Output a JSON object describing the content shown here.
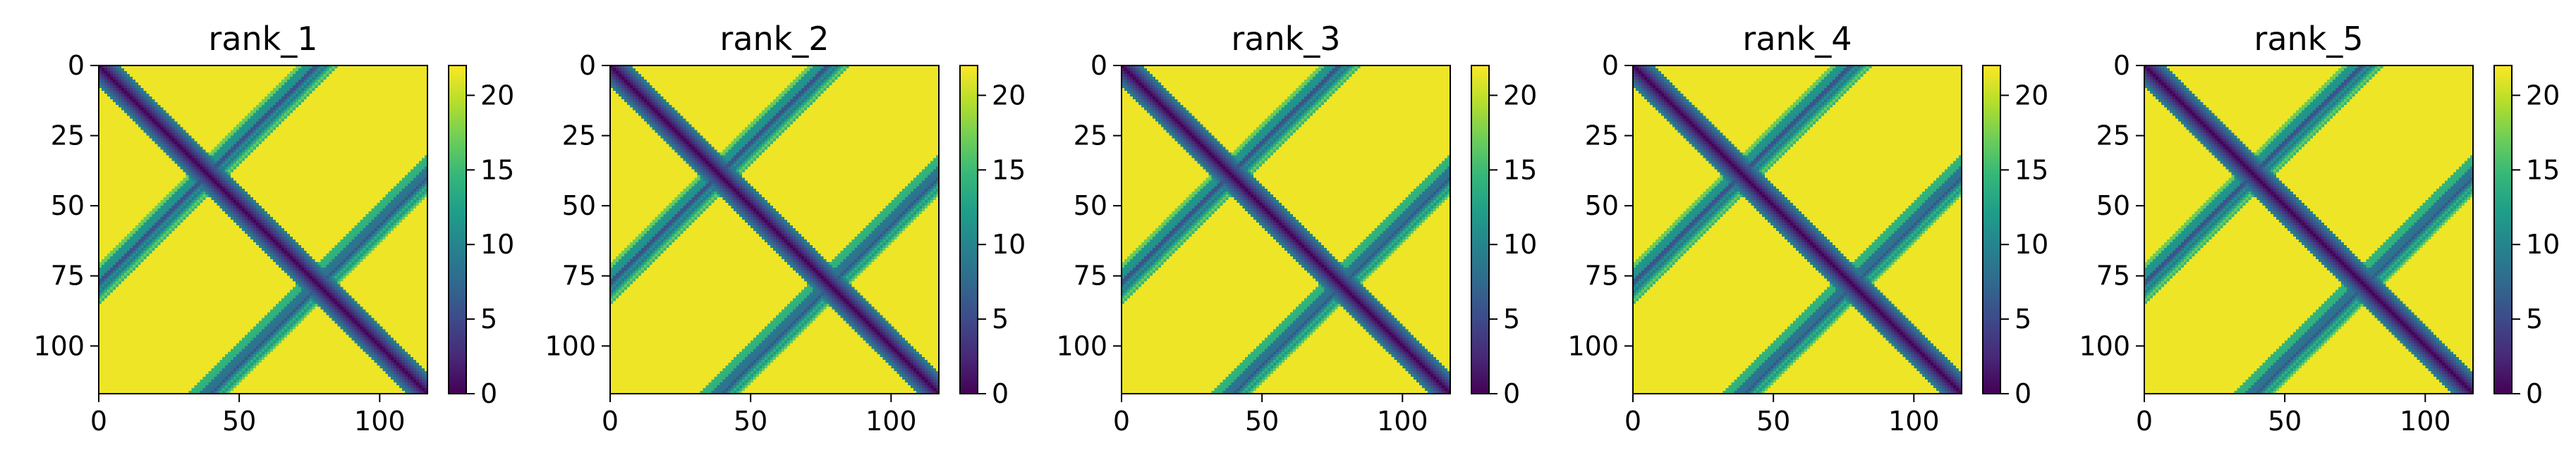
{
  "figure": {
    "background": "#ffffff"
  },
  "colormap": {
    "name": "viridis",
    "stops": [
      "#440154",
      "#482878",
      "#3e4989",
      "#31688e",
      "#26828e",
      "#1f9e89",
      "#35b779",
      "#6ece58",
      "#b5de2b",
      "#fde725"
    ]
  },
  "chart_data": [
    {
      "type": "heatmap",
      "title": "rank_1",
      "matrix_size": 117,
      "x_ticks": [
        "0",
        "50",
        "100"
      ],
      "y_ticks": [
        "0",
        "25",
        "50",
        "75",
        "100"
      ],
      "xlim": [
        0,
        117
      ],
      "ylim": [
        117,
        0
      ],
      "colorbar": {
        "vmin": 0,
        "vmax": 22,
        "ticks": [
          "0",
          "5",
          "10",
          "15",
          "20"
        ]
      },
      "pattern": {
        "main_diagonal_width": 7,
        "anti_bands": [
          {
            "center": 77,
            "half_width": 7
          },
          {
            "center": 155,
            "half_width": 7
          }
        ],
        "saturation": 21.5,
        "saw_period": 4
      }
    },
    {
      "type": "heatmap",
      "title": "rank_2",
      "matrix_size": 117,
      "x_ticks": [
        "0",
        "50",
        "100"
      ],
      "y_ticks": [
        "0",
        "25",
        "50",
        "75",
        "100"
      ],
      "xlim": [
        0,
        117
      ],
      "ylim": [
        117,
        0
      ],
      "colorbar": {
        "vmin": 0,
        "vmax": 22,
        "ticks": [
          "0",
          "5",
          "10",
          "15",
          "20"
        ]
      },
      "pattern": {
        "main_diagonal_width": 7,
        "anti_bands": [
          {
            "center": 77,
            "half_width": 7
          },
          {
            "center": 155,
            "half_width": 7
          }
        ],
        "saturation": 21.5,
        "saw_period": 4
      }
    },
    {
      "type": "heatmap",
      "title": "rank_3",
      "matrix_size": 117,
      "x_ticks": [
        "0",
        "50",
        "100"
      ],
      "y_ticks": [
        "0",
        "25",
        "50",
        "75",
        "100"
      ],
      "xlim": [
        0,
        117
      ],
      "ylim": [
        117,
        0
      ],
      "colorbar": {
        "vmin": 0,
        "vmax": 22,
        "ticks": [
          "0",
          "5",
          "10",
          "15",
          "20"
        ]
      },
      "pattern": {
        "main_diagonal_width": 7,
        "anti_bands": [
          {
            "center": 77,
            "half_width": 7
          },
          {
            "center": 155,
            "half_width": 7
          }
        ],
        "saturation": 21.5,
        "saw_period": 4
      }
    },
    {
      "type": "heatmap",
      "title": "rank_4",
      "matrix_size": 117,
      "x_ticks": [
        "0",
        "50",
        "100"
      ],
      "y_ticks": [
        "0",
        "25",
        "50",
        "75",
        "100"
      ],
      "xlim": [
        0,
        117
      ],
      "ylim": [
        117,
        0
      ],
      "colorbar": {
        "vmin": 0,
        "vmax": 22,
        "ticks": [
          "0",
          "5",
          "10",
          "15",
          "20"
        ]
      },
      "pattern": {
        "main_diagonal_width": 7,
        "anti_bands": [
          {
            "center": 77,
            "half_width": 7
          },
          {
            "center": 155,
            "half_width": 7
          }
        ],
        "saturation": 21.5,
        "saw_period": 4
      }
    },
    {
      "type": "heatmap",
      "title": "rank_5",
      "matrix_size": 117,
      "x_ticks": [
        "0",
        "50",
        "100"
      ],
      "y_ticks": [
        "0",
        "25",
        "50",
        "75",
        "100"
      ],
      "xlim": [
        0,
        117
      ],
      "ylim": [
        117,
        0
      ],
      "colorbar": {
        "vmin": 0,
        "vmax": 22,
        "ticks": [
          "0",
          "5",
          "10",
          "15",
          "20"
        ]
      },
      "pattern": {
        "main_diagonal_width": 7,
        "anti_bands": [
          {
            "center": 77,
            "half_width": 7
          },
          {
            "center": 155,
            "half_width": 7
          }
        ],
        "saturation": 21.5,
        "saw_period": 4
      }
    }
  ]
}
